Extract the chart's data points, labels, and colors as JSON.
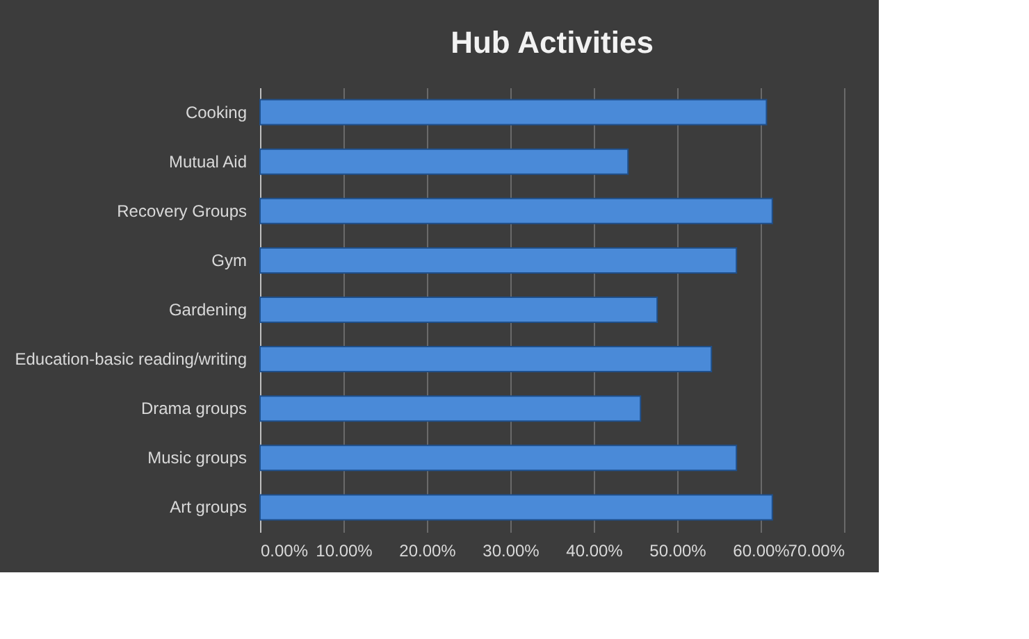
{
  "chart_data": {
    "type": "bar",
    "orientation": "horizontal",
    "title": "Hub Activities",
    "categories": [
      "Cooking",
      "Mutual Aid",
      "Recovery Groups",
      "Gym",
      "Gardening",
      "Education-basic reading/writing",
      "Drama groups",
      "Music groups",
      "Art groups"
    ],
    "values": [
      60.7,
      44.1,
      61.4,
      57.1,
      47.6,
      54.1,
      45.6,
      57.1,
      61.4
    ],
    "color": "#4a8ad8",
    "xlim": [
      0,
      70
    ],
    "xticks": [
      {
        "value": 0,
        "label": "0.00%"
      },
      {
        "value": 10,
        "label": "10.00%"
      },
      {
        "value": 20,
        "label": "20.00%"
      },
      {
        "value": 30,
        "label": "30.00%"
      },
      {
        "value": 40,
        "label": "40.00%"
      },
      {
        "value": 50,
        "label": "50.00%"
      },
      {
        "value": 60,
        "label": "60.00%"
      },
      {
        "value": 70,
        "label": "70.00%"
      }
    ],
    "grid": "x"
  }
}
